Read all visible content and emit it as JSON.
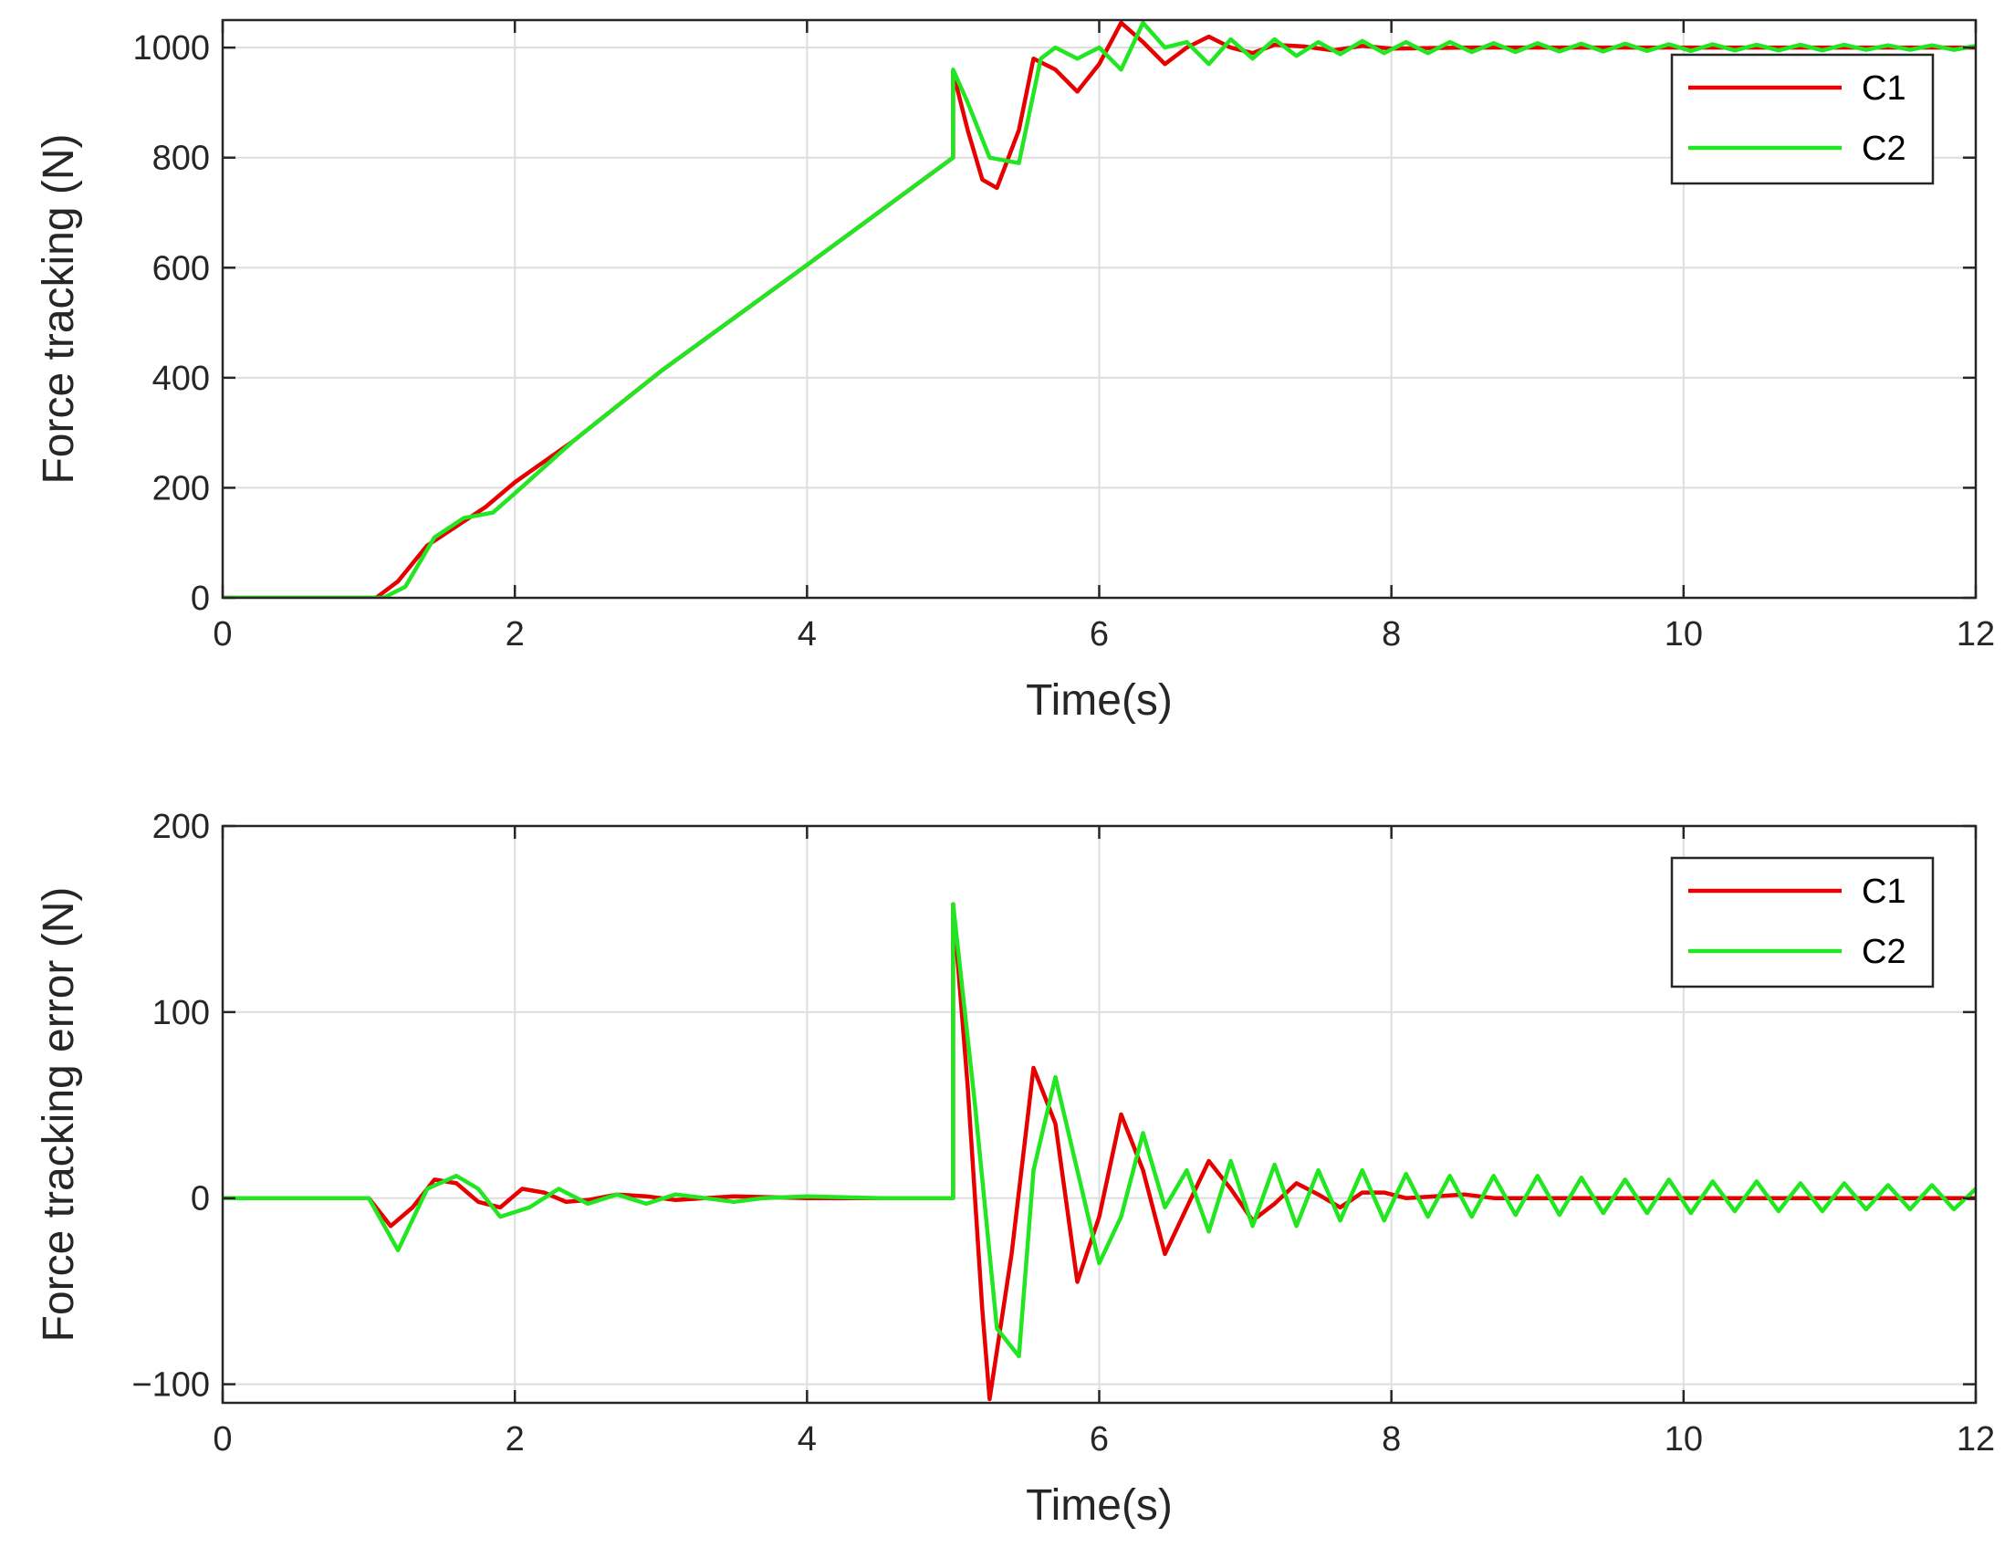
{
  "chart_data": [
    {
      "type": "line",
      "id": "force",
      "xlabel": "Time(s)",
      "ylabel": "Force tracking (N)",
      "xlim": [
        0,
        12
      ],
      "ylim": [
        0,
        1050
      ],
      "xticks": [
        0,
        2,
        4,
        6,
        8,
        10,
        12
      ],
      "yticks": [
        0,
        200,
        400,
        600,
        800,
        1000
      ],
      "grid": true,
      "legend": "top-right",
      "series": [
        {
          "name": "C1",
          "color": "#e60000",
          "x": [
            0,
            1.05,
            1.2,
            1.4,
            1.6,
            1.8,
            2.0,
            2.4,
            3.0,
            4.0,
            5.0,
            5.0,
            5.1,
            5.2,
            5.3,
            5.45,
            5.55,
            5.7,
            5.85,
            6.0,
            6.15,
            6.3,
            6.45,
            6.6,
            6.75,
            6.9,
            7.05,
            7.2,
            7.4,
            7.6,
            7.8,
            8.0,
            8.5,
            9.0,
            10.0,
            11.0,
            12.0
          ],
          "y": [
            0,
            0,
            30,
            95,
            130,
            165,
            210,
            285,
            412,
            605,
            800,
            955,
            850,
            760,
            745,
            850,
            980,
            960,
            920,
            970,
            1045,
            1010,
            970,
            1000,
            1020,
            1000,
            990,
            1005,
            1002,
            995,
            1003,
            998,
            1000,
            1000,
            1000,
            1000,
            1000
          ]
        },
        {
          "name": "C2",
          "color": "#22e622",
          "x": [
            0,
            1.1,
            1.25,
            1.45,
            1.65,
            1.85,
            2.0,
            2.4,
            3.0,
            4.0,
            5.0,
            5.0,
            5.1,
            5.25,
            5.45,
            5.6,
            5.7,
            5.85,
            6.0,
            6.15,
            6.3,
            6.45,
            6.6,
            6.75,
            6.9,
            7.05,
            7.2,
            7.35,
            7.5,
            7.65,
            7.8,
            7.95,
            8.1,
            8.25,
            8.4,
            8.55,
            8.7,
            8.85,
            9.0,
            9.15,
            9.3,
            9.45,
            9.6,
            9.75,
            9.9,
            10.05,
            10.2,
            10.35,
            10.5,
            10.65,
            10.8,
            10.95,
            11.1,
            11.25,
            11.4,
            11.55,
            11.7,
            11.85,
            12.0
          ],
          "y": [
            0,
            0,
            20,
            110,
            145,
            155,
            190,
            285,
            412,
            605,
            800,
            960,
            900,
            800,
            790,
            980,
            1000,
            980,
            1000,
            960,
            1045,
            1000,
            1010,
            970,
            1015,
            980,
            1015,
            985,
            1010,
            988,
            1012,
            990,
            1010,
            990,
            1010,
            992,
            1008,
            992,
            1008,
            993,
            1007,
            993,
            1007,
            994,
            1006,
            994,
            1006,
            995,
            1005,
            995,
            1005,
            995,
            1005,
            996,
            1004,
            996,
            1004,
            996,
            1003
          ]
        }
      ]
    },
    {
      "type": "line",
      "id": "error",
      "xlabel": "Time(s)",
      "ylabel": "Force tracking error (N)",
      "xlim": [
        0,
        12
      ],
      "ylim": [
        -110,
        200
      ],
      "xticks": [
        0,
        2,
        4,
        6,
        8,
        10,
        12
      ],
      "yticks": [
        -100,
        0,
        100,
        200
      ],
      "ytick_labels": [
        "−100",
        "0",
        "100",
        "200"
      ],
      "grid": true,
      "legend": "top-right",
      "series": [
        {
          "name": "C1",
          "color": "#e60000",
          "x": [
            0,
            1.0,
            1.15,
            1.3,
            1.45,
            1.6,
            1.75,
            1.9,
            2.05,
            2.2,
            2.35,
            2.5,
            2.7,
            2.9,
            3.1,
            3.3,
            3.5,
            4.0,
            4.5,
            5.0,
            5.0,
            5.1,
            5.2,
            5.25,
            5.4,
            5.55,
            5.7,
            5.85,
            6.0,
            6.15,
            6.3,
            6.45,
            6.6,
            6.75,
            6.9,
            7.05,
            7.2,
            7.35,
            7.5,
            7.65,
            7.8,
            7.95,
            8.1,
            8.3,
            8.5,
            8.7,
            9.0,
            9.5,
            10.0,
            11.0,
            12.0
          ],
          "y": [
            0,
            0,
            -15,
            -5,
            10,
            8,
            -2,
            -5,
            5,
            3,
            -2,
            -1,
            2,
            1,
            -1,
            0,
            1,
            0,
            0,
            0,
            158,
            60,
            -60,
            -108,
            -30,
            70,
            40,
            -45,
            -10,
            45,
            15,
            -30,
            -5,
            20,
            5,
            -12,
            -3,
            8,
            2,
            -5,
            3,
            3,
            0,
            1,
            2,
            0,
            0,
            0,
            0,
            0,
            0
          ]
        },
        {
          "name": "C2",
          "color": "#22e622",
          "x": [
            0,
            1.0,
            1.2,
            1.4,
            1.6,
            1.75,
            1.9,
            2.1,
            2.3,
            2.5,
            2.7,
            2.9,
            3.1,
            3.3,
            3.5,
            3.7,
            4.0,
            4.5,
            5.0,
            5.0,
            5.15,
            5.3,
            5.45,
            5.55,
            5.7,
            5.85,
            6.0,
            6.15,
            6.3,
            6.45,
            6.6,
            6.75,
            6.9,
            7.05,
            7.2,
            7.35,
            7.5,
            7.65,
            7.8,
            7.95,
            8.1,
            8.25,
            8.4,
            8.55,
            8.7,
            8.85,
            9.0,
            9.15,
            9.3,
            9.45,
            9.6,
            9.75,
            9.9,
            10.05,
            10.2,
            10.35,
            10.5,
            10.65,
            10.8,
            10.95,
            11.1,
            11.25,
            11.4,
            11.55,
            11.7,
            11.85,
            12.0
          ],
          "y": [
            0,
            0,
            -28,
            5,
            12,
            5,
            -10,
            -5,
            5,
            -3,
            2,
            -3,
            2,
            0,
            -2,
            0,
            1,
            0,
            0,
            158,
            50,
            -70,
            -85,
            15,
            65,
            15,
            -35,
            -10,
            35,
            -5,
            15,
            -18,
            20,
            -15,
            18,
            -15,
            15,
            -12,
            15,
            -12,
            13,
            -10,
            12,
            -10,
            12,
            -9,
            12,
            -9,
            11,
            -8,
            10,
            -8,
            10,
            -8,
            9,
            -7,
            9,
            -7,
            8,
            -7,
            8,
            -6,
            7,
            -6,
            7,
            -6,
            5
          ]
        }
      ]
    }
  ]
}
